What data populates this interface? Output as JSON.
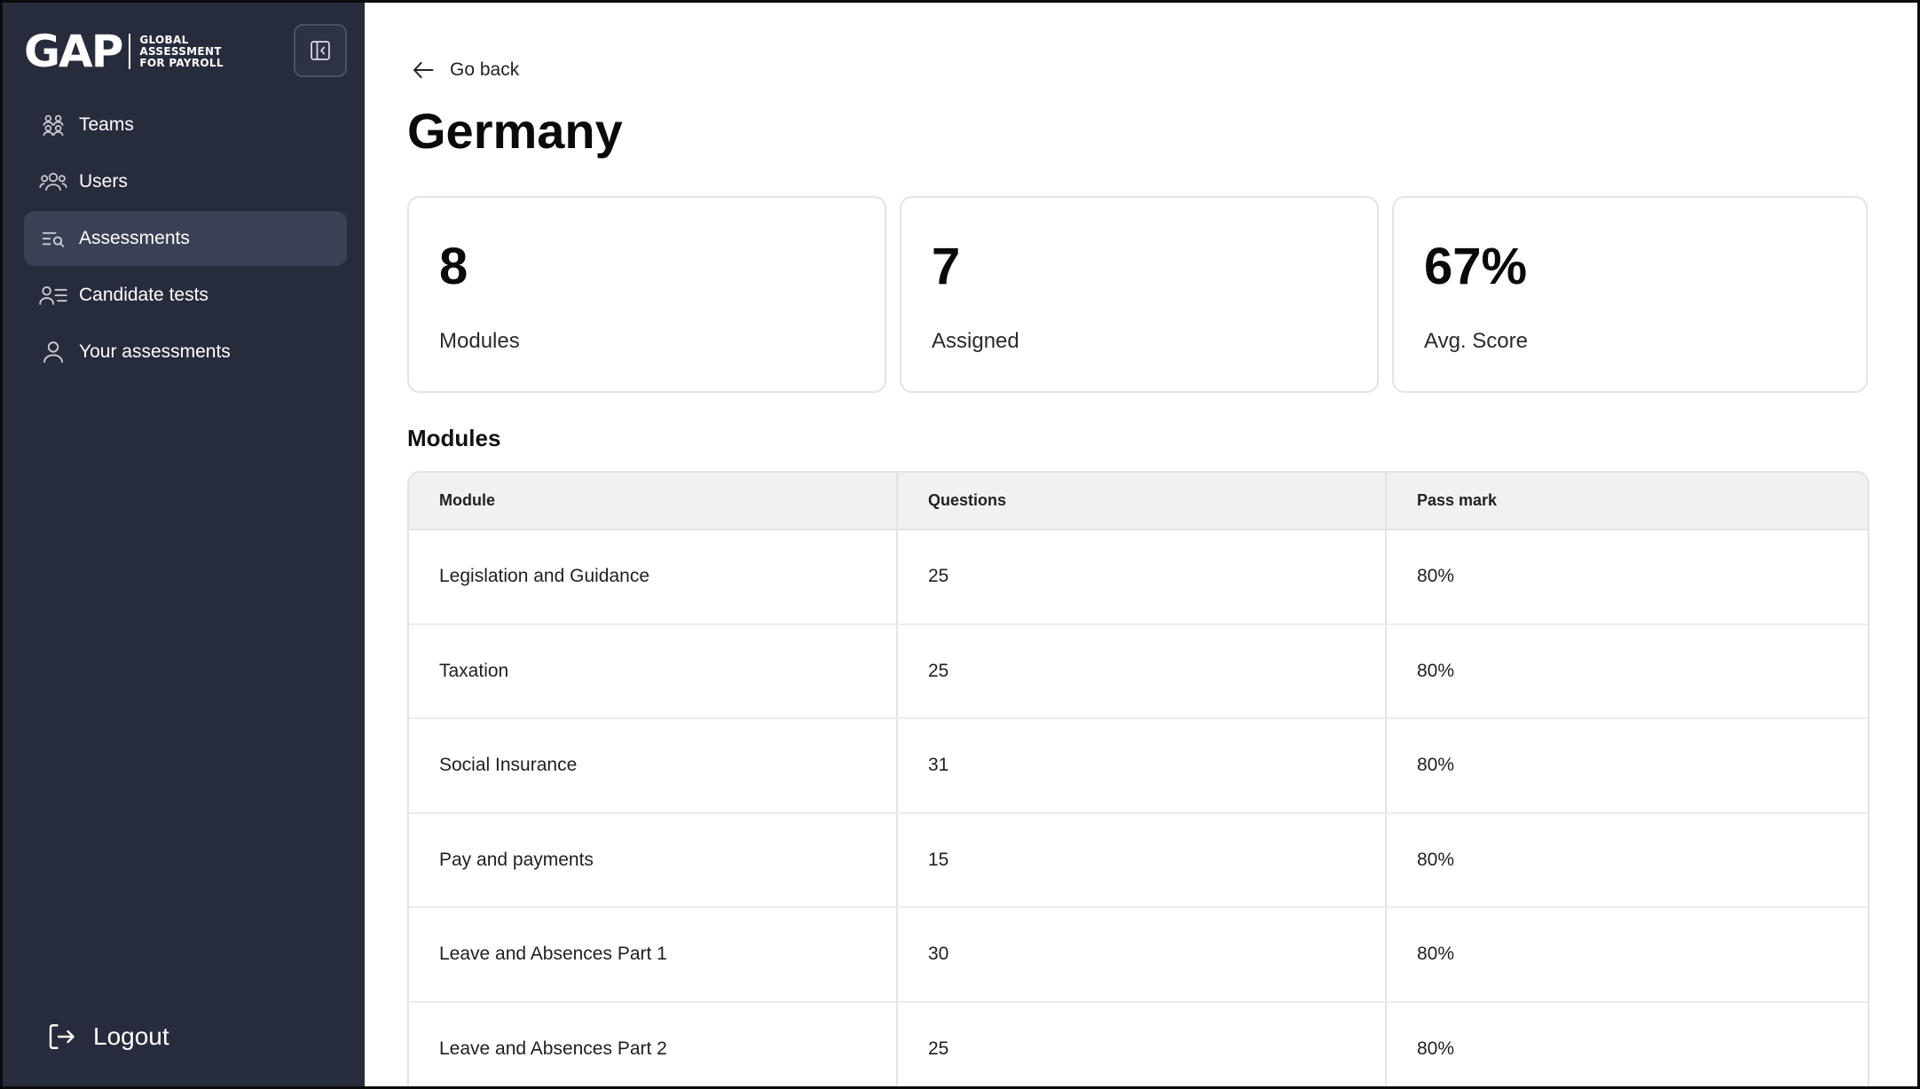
{
  "sidebar": {
    "brand": {
      "mark": "GAP",
      "line1": "GLOBAL",
      "line2": "ASSESSMENT",
      "line3": "FOR PAYROLL"
    },
    "items": [
      {
        "label": "Teams",
        "icon": "teams-icon",
        "active": false
      },
      {
        "label": "Users",
        "icon": "users-icon",
        "active": false
      },
      {
        "label": "Assessments",
        "icon": "assessments-icon",
        "active": true
      },
      {
        "label": "Candidate tests",
        "icon": "candidate-tests-icon",
        "active": false
      },
      {
        "label": "Your assessments",
        "icon": "user-icon",
        "active": false
      }
    ],
    "logout_label": "Logout"
  },
  "main": {
    "back_label": "Go back",
    "title": "Germany",
    "stats": [
      {
        "value": "8",
        "label": "Modules"
      },
      {
        "value": "7",
        "label": "Assigned"
      },
      {
        "value": "67%",
        "label": "Avg. Score"
      }
    ],
    "section_title": "Modules",
    "table": {
      "headers": [
        "Module",
        "Questions",
        "Pass mark"
      ],
      "rows": [
        [
          "Legislation and Guidance",
          "25",
          "80%"
        ],
        [
          "Taxation",
          "25",
          "80%"
        ],
        [
          "Social Insurance",
          "31",
          "80%"
        ],
        [
          "Pay and payments",
          "15",
          "80%"
        ],
        [
          "Leave and Absences Part 1",
          "30",
          "80%"
        ],
        [
          "Leave and Absences Part 2",
          "25",
          "80%"
        ]
      ]
    }
  },
  "colors": {
    "sidebar_bg": "#272c3d",
    "sidebar_active": "#3b4155",
    "table_header_bg": "#f1f1f2",
    "border": "#e4e4e7"
  }
}
